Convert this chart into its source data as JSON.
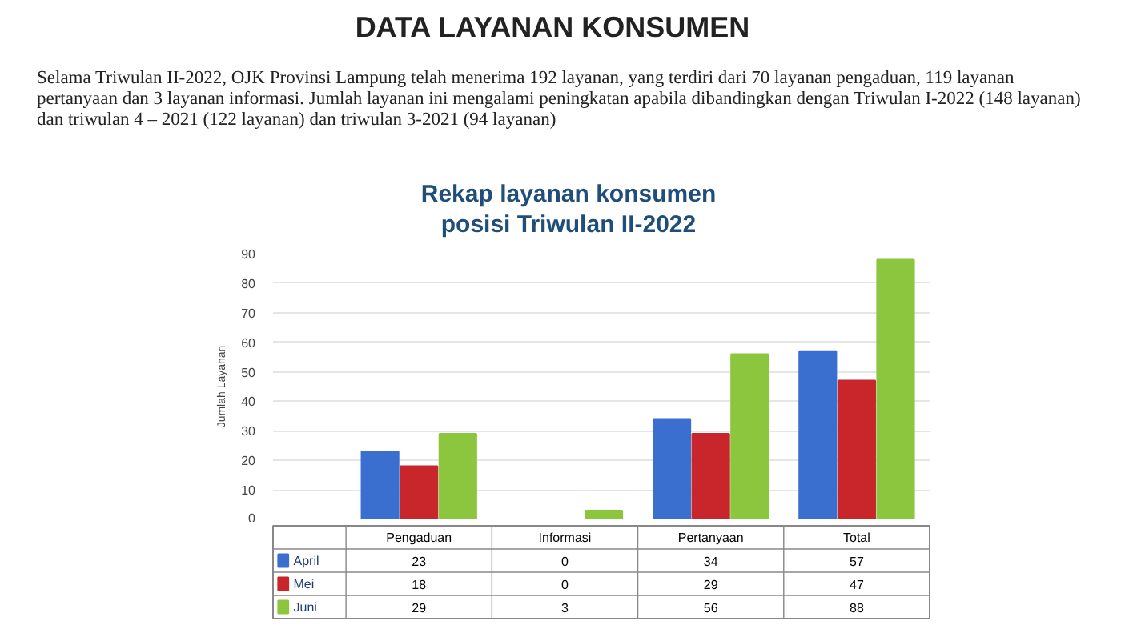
{
  "chart_data": {
    "type": "bar",
    "title": "Rekap layanan konsumen\nposisi Triwulan II-2022",
    "subtitle": "DATA LAYANAN KONSUMEN",
    "annotations": [
      "Selama Triwulan II-2022, OJK Provinsi Lampung telah menerima 192 layanan, yang terdiri dari 70 layanan pengaduan, 119 layanan pertanyaan dan 3 layanan informasi.  Jumlah layanan ini mengalami peningkatan apabila dibandingkan dengan Triwulan I-2022 (148 layanan) dan triwulan 4 – 2021 (122 layanan) dan triwulan 3-2021 (94 layanan)"
    ],
    "ylabel": "Jumlah Layanan",
    "categories": [
      "Pengaduan",
      "Informasi",
      "Pertanyaan",
      "Total"
    ],
    "series": [
      {
        "name": "April",
        "color": "#3a6fd0",
        "values": [
          23,
          0,
          34,
          57
        ]
      },
      {
        "name": "Mei",
        "color": "#c8262a",
        "values": [
          18,
          0,
          29,
          47
        ]
      },
      {
        "name": "Juni",
        "color": "#8cc63e",
        "values": [
          29,
          3,
          56,
          88
        ]
      }
    ],
    "ylim": [
      0,
      90
    ],
    "yticks": [
      0,
      10,
      20,
      30,
      40,
      50,
      60,
      70,
      80,
      90
    ],
    "grid": "y",
    "legend": "bottom",
    "data_labels": true,
    "tick_labels": "y"
  }
}
